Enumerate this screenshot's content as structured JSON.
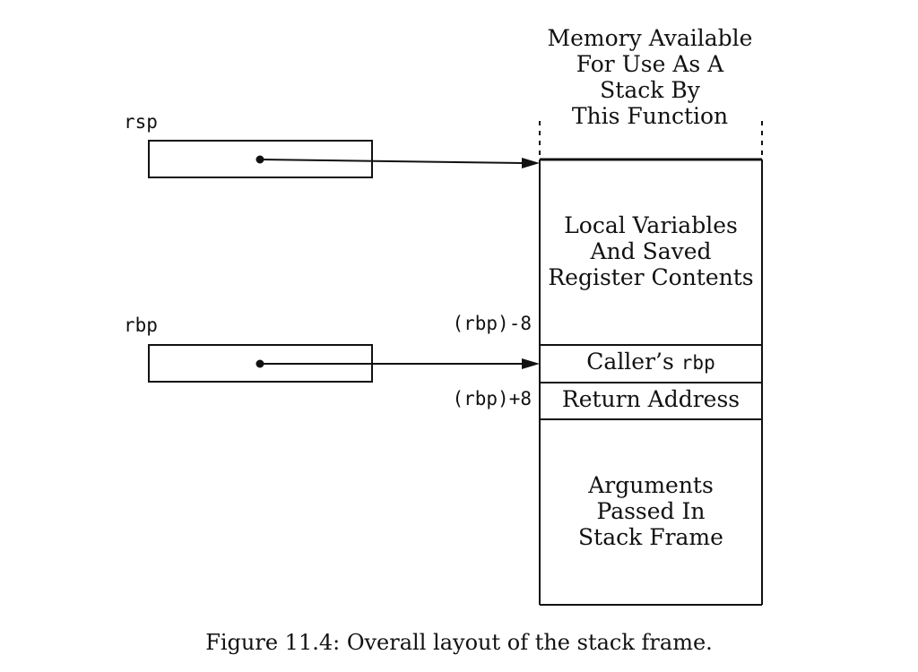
{
  "header": {
    "text": "Memory Available\nFor Use As A\nStack By\nThis Function"
  },
  "registers": {
    "rsp": "rsp",
    "rbp": "rbp"
  },
  "offsets": {
    "minus": "(rbp)-8",
    "plus": "(rbp)+8"
  },
  "stack": {
    "locals": "Local Variables\nAnd Saved\nRegister Contents",
    "caller_prefix": "Caller’s ",
    "caller_reg": "rbp",
    "return_address": "Return Address",
    "arguments": "Arguments\nPassed In\nStack Frame"
  },
  "caption": "Figure 11.4: Overall layout of the stack frame."
}
